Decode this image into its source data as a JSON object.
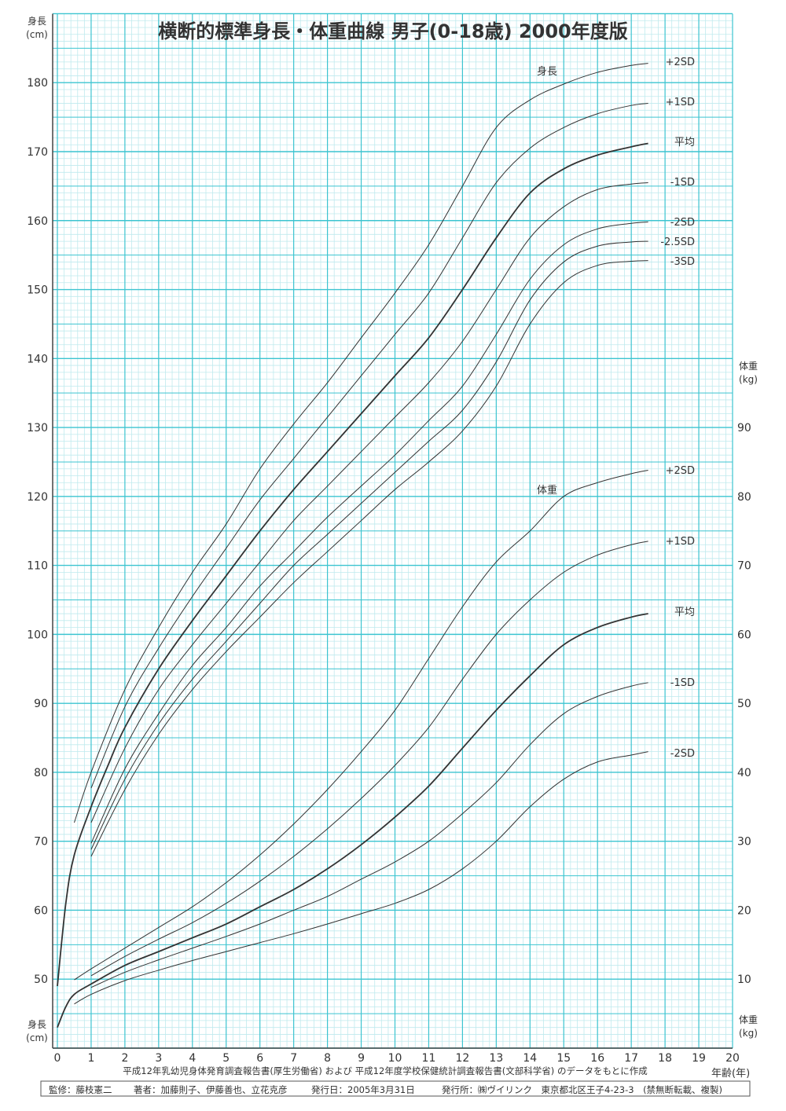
{
  "chart_data": {
    "type": "line",
    "title": "横断的標準身長・体重曲線 男子(0-18歳) 2000年度版",
    "xlabel": "年齢(年)",
    "ylabel_left": "身長(cm)",
    "ylabel_right": "体重(kg)",
    "xlim": [
      0,
      20
    ],
    "ylim_left": [
      40,
      190
    ],
    "ylim_right": [
      0,
      150
    ],
    "x_ticks": [
      0,
      1,
      2,
      3,
      4,
      5,
      6,
      7,
      8,
      9,
      10,
      11,
      12,
      13,
      14,
      15,
      16,
      17,
      18,
      19,
      20
    ],
    "left_ticks": [
      50,
      60,
      70,
      80,
      90,
      100,
      110,
      120,
      130,
      140,
      150,
      160,
      170,
      180
    ],
    "right_ticks": [
      10,
      20,
      30,
      40,
      50,
      60,
      70,
      80,
      90
    ],
    "grid": true,
    "height_group_label": "身長",
    "weight_group_label": "体重",
    "height_series": [
      {
        "name": "+2SD",
        "x": [
          0.5,
          1,
          2,
          3,
          4,
          5,
          6,
          7,
          8,
          9,
          10,
          11,
          12,
          13,
          14,
          15,
          16,
          17,
          17.5
        ],
        "values": [
          72.7,
          80,
          92,
          101,
          109,
          116,
          124,
          130.5,
          136.5,
          143,
          149.5,
          156.5,
          165,
          173.5,
          177.5,
          179.8,
          181.5,
          182.5,
          182.8
        ]
      },
      {
        "name": "+1SD",
        "x": [
          1,
          2,
          3,
          4,
          5,
          6,
          7,
          8,
          9,
          10,
          11,
          12,
          13,
          14,
          15,
          16,
          17,
          17.5
        ],
        "values": [
          77.7,
          89.5,
          98,
          105.5,
          112.5,
          119.5,
          125.5,
          131.5,
          137.5,
          143.5,
          149.5,
          157.5,
          165.5,
          170.5,
          173.5,
          175.5,
          176.7,
          177
        ]
      },
      {
        "name": "平均",
        "x": [
          0,
          0.25,
          0.5,
          1,
          1.5,
          2,
          3,
          4,
          5,
          6,
          7,
          8,
          9,
          10,
          11,
          12,
          13,
          14,
          15,
          16,
          17,
          17.5
        ],
        "values": [
          49,
          61,
          68,
          75,
          81,
          86.5,
          95,
          102,
          108.5,
          115,
          121,
          126.5,
          132,
          137.5,
          143,
          150,
          157.5,
          164,
          167.5,
          169.5,
          170.7,
          171.2
        ]
      },
      {
        "name": "-1SD",
        "x": [
          1,
          2,
          3,
          4,
          5,
          6,
          7,
          8,
          9,
          10,
          11,
          12,
          13,
          14,
          15,
          16,
          17,
          17.5
        ],
        "values": [
          72.7,
          83.5,
          92,
          98.5,
          104.5,
          110.5,
          116.5,
          121.5,
          126.5,
          131.5,
          136.5,
          142.5,
          150,
          157.5,
          162,
          164.5,
          165.3,
          165.5
        ]
      },
      {
        "name": "-2SD",
        "x": [
          1,
          2,
          3,
          4,
          5,
          6,
          7,
          8,
          9,
          10,
          11,
          12,
          13,
          14,
          15,
          16,
          17,
          17.5
        ],
        "values": [
          69.7,
          80.5,
          88.5,
          95.5,
          101,
          107,
          112,
          117,
          121.5,
          126,
          131,
          136,
          143.5,
          151.5,
          156.5,
          158.8,
          159.6,
          159.8
        ]
      },
      {
        "name": "-2.5SD",
        "x": [
          1,
          2,
          3,
          4,
          5,
          6,
          7,
          8,
          9,
          10,
          11,
          12,
          13,
          14,
          15,
          16,
          17,
          17.5
        ],
        "values": [
          68.8,
          79,
          87,
          93.5,
          99,
          104.5,
          110,
          114.5,
          119,
          123.5,
          128,
          132.5,
          139.5,
          148.5,
          154,
          156.3,
          156.9,
          157
        ]
      },
      {
        "name": "-3SD",
        "x": [
          1,
          2,
          3,
          4,
          5,
          6,
          7,
          8,
          9,
          10,
          11,
          12,
          13,
          14,
          15,
          16,
          17,
          17.5
        ],
        "values": [
          67.8,
          77.5,
          85.5,
          92,
          97.5,
          102.5,
          107.5,
          112,
          116.5,
          121,
          125,
          129.5,
          136,
          145,
          151,
          153.5,
          154.1,
          154.2
        ]
      }
    ],
    "weight_series": [
      {
        "name": "+2SD",
        "x": [
          0.5,
          1,
          2,
          3,
          4,
          5,
          6,
          7,
          8,
          9,
          10,
          11,
          12,
          13,
          14,
          15,
          16,
          17,
          17.5
        ],
        "values": [
          9.9,
          11.5,
          14.5,
          17.5,
          20.5,
          24,
          28,
          32.5,
          37.5,
          43,
          49,
          56.5,
          64,
          70.5,
          75,
          80,
          82,
          83.3,
          83.8
        ]
      },
      {
        "name": "+1SD",
        "x": [
          1,
          2,
          3,
          4,
          5,
          6,
          7,
          8,
          9,
          10,
          11,
          12,
          13,
          14,
          15,
          16,
          17,
          17.5
        ],
        "values": [
          10.5,
          13.3,
          15.8,
          18.2,
          21,
          24.2,
          27.8,
          31.8,
          36.2,
          41,
          46.5,
          53.5,
          60,
          65,
          69,
          71.5,
          73,
          73.5
        ]
      },
      {
        "name": "平均",
        "x": [
          0,
          0.25,
          0.5,
          1,
          2,
          3,
          4,
          5,
          6,
          7,
          8,
          9,
          10,
          11,
          12,
          13,
          14,
          15,
          16,
          17,
          17.5
        ],
        "values": [
          3,
          6,
          7.8,
          9.3,
          12,
          14,
          16,
          18,
          20.5,
          23,
          26,
          29.5,
          33.5,
          38,
          43.5,
          49,
          54,
          58.5,
          61,
          62.5,
          63
        ]
      },
      {
        "name": "-1SD",
        "x": [
          1,
          2,
          3,
          4,
          5,
          6,
          7,
          8,
          9,
          10,
          11,
          12,
          13,
          14,
          15,
          16,
          17,
          17.5
        ],
        "values": [
          8.8,
          11,
          12.8,
          14.5,
          16.2,
          18,
          20,
          22,
          24.5,
          27,
          30,
          34,
          38.5,
          44,
          48.5,
          51,
          52.5,
          53
        ]
      },
      {
        "name": "-2SD",
        "x": [
          0.5,
          1,
          2,
          3,
          4,
          5,
          6,
          7,
          8,
          9,
          10,
          11,
          12,
          13,
          14,
          15,
          16,
          17,
          17.5
        ],
        "values": [
          6.4,
          7.8,
          9.8,
          11.3,
          12.7,
          14,
          15.3,
          16.6,
          18,
          19.5,
          21,
          23,
          26,
          30,
          35,
          39,
          41.5,
          42.5,
          43
        ]
      }
    ],
    "colors": {
      "grid_major": "#3cc4d0",
      "grid_minor": "#bfeaee",
      "line": "#333333"
    }
  },
  "footer": {
    "source": "平成12年乳幼児身体発育調査報告書(厚生労働省) および 平成12年度学校保健統計調査報告書(文部科学省) のデータをもとに作成",
    "supervisor": "監修：藤枝憲二",
    "authors": "著者：加藤則子、伊藤善也、立花克彦",
    "date": "発行日：2005年3月31日",
    "publisher": "発行所：㈱ヴイリンク　東京都北区王子4-23-3　(禁無断転載、複製)"
  }
}
